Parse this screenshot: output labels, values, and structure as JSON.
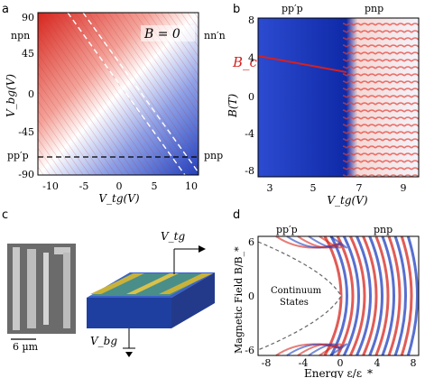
{
  "panels": {
    "a": {
      "letter": "a",
      "annotation": "B = 0",
      "region_labels": [
        "npn",
        "nn′n",
        "pp′p",
        "pnp"
      ],
      "ylabel": "V_bg(V)",
      "xlabel": "V_tg(V)",
      "yticks": [
        "90",
        "45",
        "0",
        "-45",
        "-90"
      ],
      "xticks": [
        "-10",
        "-5",
        "0",
        "5",
        "10"
      ]
    },
    "b": {
      "letter": "b",
      "top_labels": [
        "pp′p",
        "pnp"
      ],
      "curve_label": "B_c",
      "ylabel": "B(T)",
      "xlabel": "V_tg(V)",
      "yticks": [
        "8",
        "4",
        "0",
        "-4",
        "-8"
      ],
      "xticks": [
        "3",
        "5",
        "7",
        "9"
      ],
      "curve_color": "#d62020"
    },
    "c": {
      "letter": "c",
      "scale_bar": "6 µm",
      "top_gate_label": "V_tg",
      "back_gate_label": "V_bg"
    },
    "d": {
      "letter": "d",
      "top_labels": [
        "pp′p",
        "pnp"
      ],
      "region_text": [
        "Continuum",
        "States"
      ],
      "ylabel": "Magnetic Field B/B_*",
      "xlabel": "Energy ε/ε_*",
      "yticks": [
        "6",
        "0",
        "-6"
      ],
      "xticks": [
        "-8",
        "-4",
        "0",
        "4",
        "8"
      ]
    }
  },
  "colors": {
    "red": "#d7261e",
    "blue": "#1f3fbf",
    "white": "#ffffff",
    "device_blue": "#2f52b8",
    "device_gold": "#c9b23a",
    "device_green": "#4f9a7a"
  },
  "chart_data": [
    {
      "type": "heatmap",
      "panel": "a",
      "title": "",
      "xlabel": "V_tg(V)",
      "ylabel": "V_bg(V)",
      "xlim": [
        -11,
        11
      ],
      "ylim": [
        -92,
        92
      ],
      "grid": false
    },
    {
      "type": "heatmap",
      "panel": "b",
      "title": "",
      "xlabel": "V_tg(V)",
      "ylabel": "B(T)",
      "xlim": [
        2.3,
        10
      ],
      "ylim": [
        -9,
        9
      ],
      "grid": false
    },
    {
      "type": "heatmap",
      "panel": "d",
      "title": "",
      "xlabel": "Energy ε/ε_*",
      "ylabel": "Magnetic Field B/B_*",
      "xlim": [
        -8.5,
        8.5
      ],
      "ylim": [
        -7,
        7
      ],
      "grid": false
    }
  ]
}
